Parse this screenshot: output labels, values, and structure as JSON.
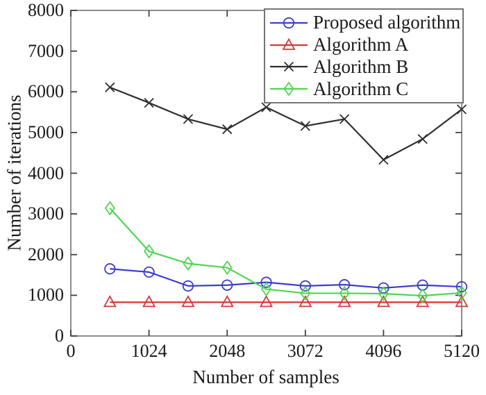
{
  "chart_data": {
    "type": "line",
    "title": "",
    "xlabel": "Number of samples",
    "ylabel": "Number of iterations",
    "xlim": [
      0,
      5120
    ],
    "ylim": [
      0,
      8000
    ],
    "xticks": [
      0,
      1024,
      2048,
      3072,
      4096,
      5120
    ],
    "yticks": [
      0,
      1000,
      2000,
      3000,
      4000,
      5000,
      6000,
      7000,
      8000
    ],
    "grid": false,
    "legend_position": "northeast",
    "x": [
      512,
      1024,
      1536,
      2048,
      2560,
      3072,
      3584,
      4096,
      4608,
      5120
    ],
    "series": [
      {
        "name": "Proposed algorithm",
        "marker": "circle",
        "color": "#3c3ccd",
        "values": [
          1650,
          1570,
          1230,
          1250,
          1320,
          1230,
          1260,
          1180,
          1250,
          1210
        ]
      },
      {
        "name": "Algorithm A",
        "marker": "triangle",
        "color": "#d93636",
        "values": [
          830,
          830,
          830,
          830,
          830,
          830,
          830,
          830,
          830,
          830
        ]
      },
      {
        "name": "Algorithm B",
        "marker": "x",
        "color": "#2e2e2e",
        "values": [
          6110,
          5730,
          5330,
          5080,
          5620,
          5160,
          5330,
          4330,
          4840,
          5570
        ]
      },
      {
        "name": "Algorithm C",
        "marker": "diamond",
        "color": "#4fd64f",
        "values": [
          3140,
          2080,
          1780,
          1680,
          1150,
          1050,
          1050,
          1040,
          990,
          1060
        ]
      }
    ],
    "colors": {
      "axis_box": "#8c8c8c",
      "tick": "#404040",
      "text": "#1a1a1a",
      "background": "#ffffff"
    }
  }
}
